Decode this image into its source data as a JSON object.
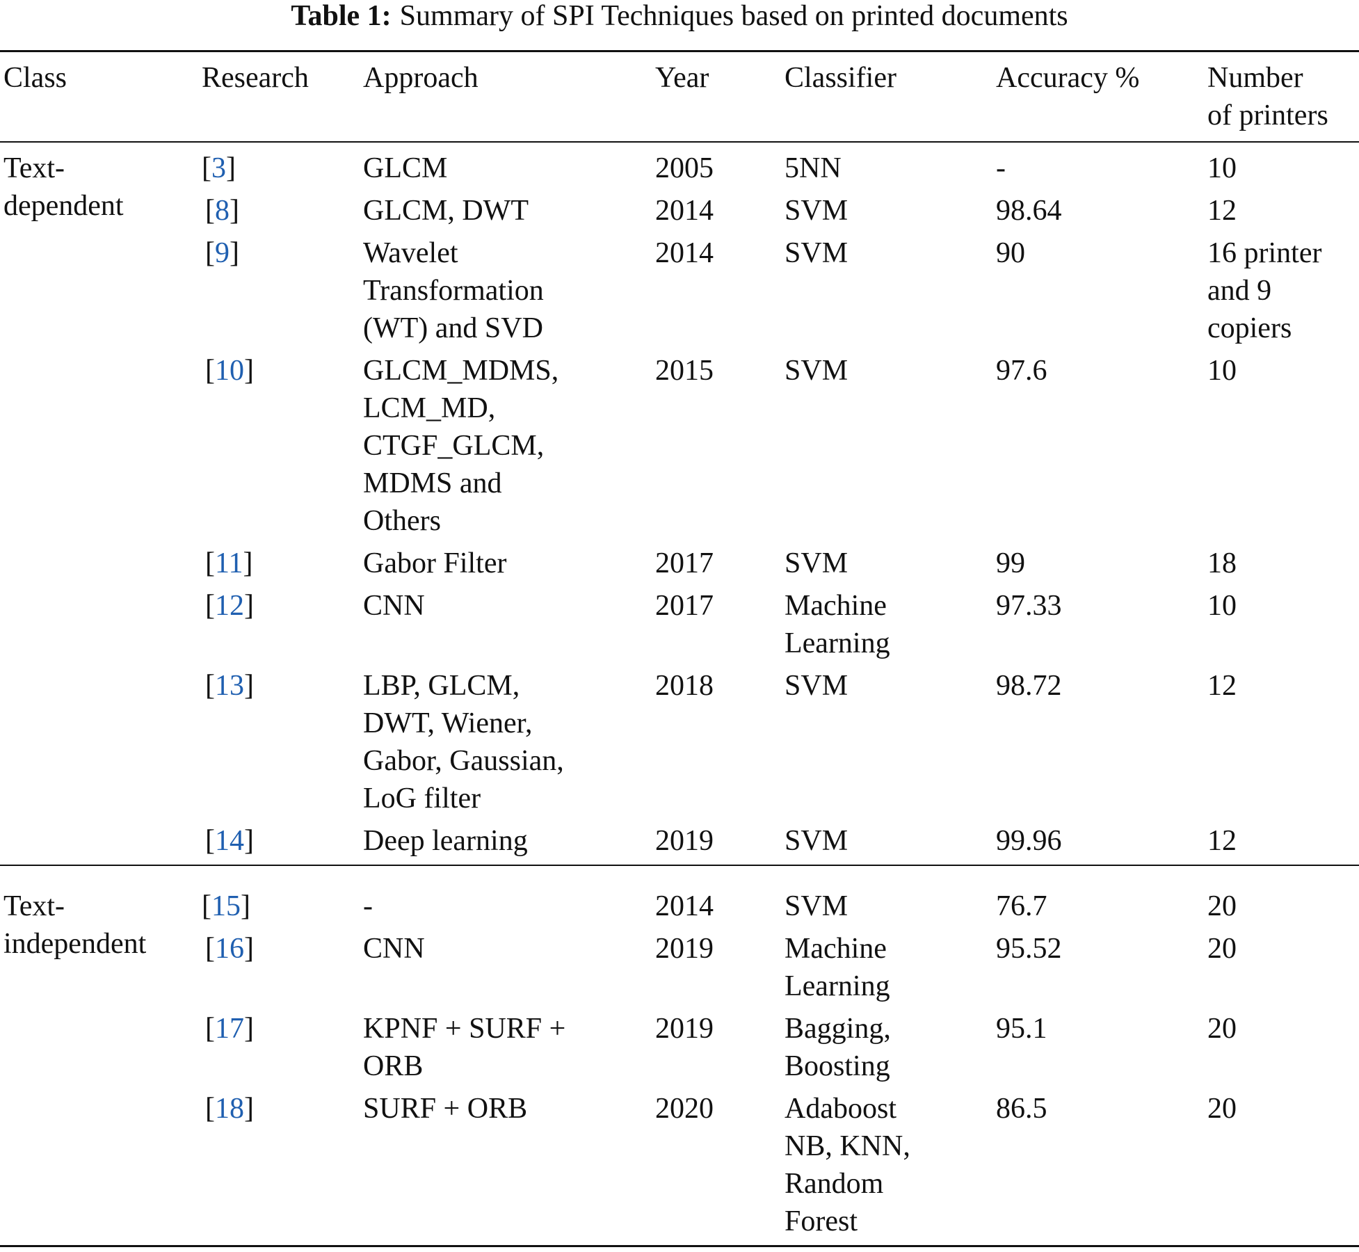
{
  "table": {
    "caption": {
      "label": "Table 1:",
      "text": "Summary of SPI Techniques based on printed documents"
    },
    "header": [
      "Class",
      "Research",
      "Approach",
      "Year",
      "Classifier",
      "Accuracy %",
      [
        "Number",
        "of printers"
      ]
    ],
    "groups": [
      {
        "class": [
          "Text-",
          "dependent"
        ],
        "rows": [
          {
            "research": "[3]",
            "approach": "GLCM",
            "year": 2005,
            "classifier": "5NN",
            "accuracy": "-",
            "printers": 10
          },
          {
            "research": "[8]",
            "approach": "GLCM, DWT",
            "year": 2014,
            "classifier": "SVM",
            "accuracy": 98.64,
            "printers": 12
          },
          {
            "research": "[9]",
            "approach": [
              "Wavelet",
              "Transformation",
              "(WT) and SVD"
            ],
            "year": 2014,
            "classifier": "SVM",
            "accuracy": 90,
            "printers": [
              "16 printer",
              "and 9",
              "copiers"
            ]
          },
          {
            "research": "[10]",
            "approach": [
              "GLCM_MDMS,",
              "LCM_MD,",
              "CTGF_GLCM,",
              "MDMS and",
              "Others"
            ],
            "year": 2015,
            "classifier": "SVM",
            "accuracy": 97.6,
            "printers": 10
          },
          {
            "research": "[11]",
            "approach": "Gabor Filter",
            "year": 2017,
            "classifier": "SVM",
            "accuracy": 99,
            "printers": 18
          },
          {
            "research": "[12]",
            "approach": "CNN",
            "year": 2017,
            "classifier": [
              "Machine",
              "Learning"
            ],
            "accuracy": 97.33,
            "printers": 10
          },
          {
            "research": "[13]",
            "approach": [
              "LBP, GLCM,",
              "DWT, Wiener,",
              "Gabor, Gaussian,",
              "LoG filter"
            ],
            "year": 2018,
            "classifier": "SVM",
            "accuracy": 98.72,
            "printers": 12
          },
          {
            "research": "[14]",
            "approach": "Deep learning",
            "year": 2019,
            "classifier": "SVM",
            "accuracy": 99.96,
            "printers": 12
          }
        ]
      },
      {
        "class": [
          "Text-",
          "independent"
        ],
        "rows": [
          {
            "research": "[15]",
            "approach": "-",
            "year": 2014,
            "classifier": "SVM",
            "accuracy": 76.7,
            "printers": 20
          },
          {
            "research": "[16]",
            "approach": "CNN",
            "year": 2019,
            "classifier": [
              "Machine",
              "Learning"
            ],
            "accuracy": 95.52,
            "printers": 20
          },
          {
            "research": "[17]",
            "approach": [
              "KPNF + SURF +",
              "ORB"
            ],
            "year": 2019,
            "classifier": [
              "Bagging,",
              "Boosting"
            ],
            "accuracy": 95.1,
            "printers": 20
          },
          {
            "research": "[18]",
            "approach": "SURF + ORB",
            "year": 2020,
            "classifier": [
              "Adaboost",
              "NB, KNN,",
              "Random",
              "Forest"
            ],
            "accuracy": 86.5,
            "printers": 20
          }
        ]
      }
    ]
  }
}
